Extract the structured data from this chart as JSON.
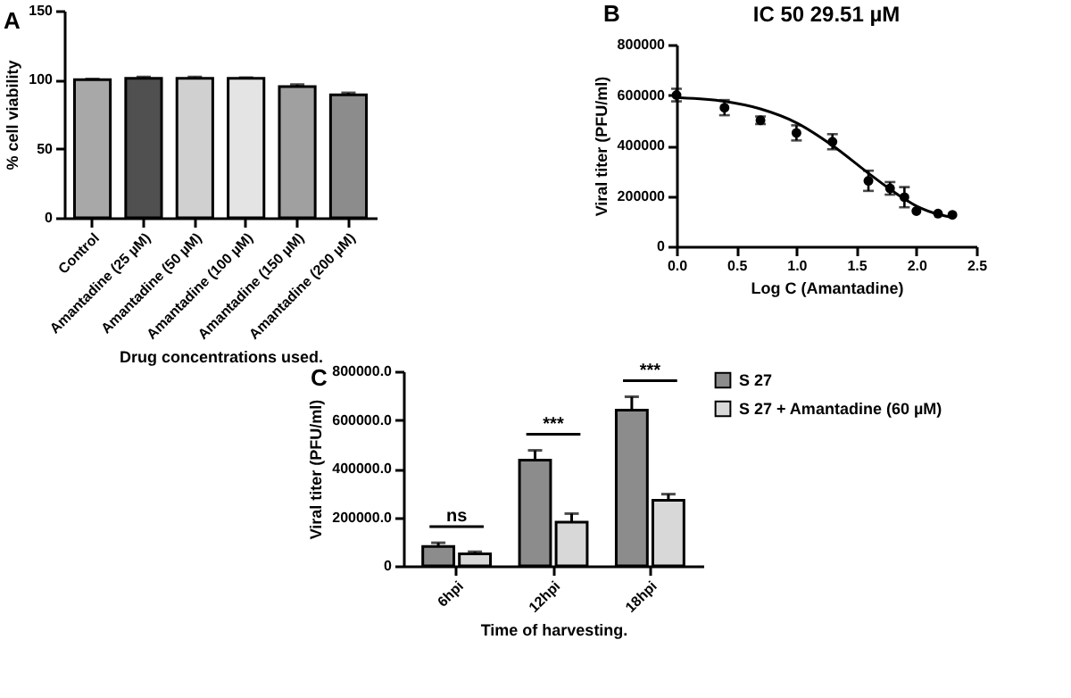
{
  "chart_data": [
    {
      "type": "bar",
      "annotations": [
        "A"
      ],
      "ylabel": "% cell viability",
      "xlabel": "Drug concentrations used.",
      "categories": [
        "Control",
        "Amantadine (25 µM)",
        "Amantadine (50 µM)",
        "Amantadine (100 µM)",
        "Amantadine (150 µM)",
        "Amantadine (200 µM)"
      ],
      "values": [
        100,
        101,
        101,
        101,
        95,
        89
      ],
      "errors": [
        0.5,
        1,
        1,
        0.5,
        1.5,
        1.5
      ],
      "colors": [
        "#a8a8a8",
        "#505050",
        "#d0d0d0",
        "#e4e4e4",
        "#a0a0a0",
        "#8c8c8c"
      ],
      "ylim": [
        0,
        150
      ],
      "yticks": [
        0,
        50,
        100,
        150
      ]
    },
    {
      "type": "scatter",
      "title": "IC 50 29.51 µM",
      "annotations": [
        "B"
      ],
      "xlabel": "Log C (Amantadine)",
      "ylabel": "Viral titer (PFU/ml)",
      "series": [
        {
          "type": "scatter",
          "marker": "circle",
          "color": "#000000",
          "x": [
            0,
            0.4,
            0.7,
            1.0,
            1.3,
            1.6,
            1.78,
            1.9,
            2.0,
            2.18,
            2.3
          ],
          "values": [
            600000,
            550000,
            500000,
            450000,
            415000,
            260000,
            230000,
            195000,
            140000,
            130000,
            125000
          ],
          "errors": [
            25000,
            30000,
            15000,
            30000,
            30000,
            40000,
            25000,
            40000,
            null,
            null,
            null
          ]
        },
        {
          "type": "line",
          "color": "#000000",
          "x": [
            0,
            0.4,
            0.7,
            1.0,
            1.3,
            1.6,
            1.8,
            2.0,
            2.2,
            2.3
          ],
          "values": [
            590000,
            575000,
            545000,
            490000,
            400000,
            290000,
            220000,
            160000,
            125000,
            115000
          ]
        }
      ],
      "xlim": [
        0,
        2.5
      ],
      "xticks": [
        {
          "value": 0,
          "label": "0.0"
        },
        0.5,
        {
          "value": 1,
          "label": "1.0"
        },
        1.5,
        {
          "value": 2,
          "label": "2.0"
        },
        2.5
      ],
      "ylim": [
        0,
        800000
      ],
      "yticks": [
        0,
        200000,
        400000,
        600000,
        800000
      ]
    },
    {
      "type": "bar",
      "annotations": [
        "C",
        "ns",
        "***",
        "***"
      ],
      "xlabel": "Time of harvesting.",
      "ylabel": "Viral titer (PFU/ml)",
      "legend": "top right",
      "categories": [
        "6hpi",
        "12hpi",
        "18hpi"
      ],
      "series": [
        {
          "name": "S 27",
          "color": "#8c8c8c",
          "values": [
            80000,
            435000,
            640000
          ],
          "errors": [
            15000,
            40000,
            55000
          ]
        },
        {
          "name": "S 27 + Amantadine (60 µM)",
          "color": "#d8d8d8",
          "values": [
            50000,
            180000,
            270000
          ],
          "errors": [
            8000,
            35000,
            25000
          ]
        }
      ],
      "ylim": [
        0,
        800000
      ],
      "yticks": [
        0,
        {
          "value": 200000,
          "label": "200000.0"
        },
        {
          "value": 400000,
          "label": "400000.0"
        },
        {
          "value": 600000,
          "label": "600000.0"
        },
        {
          "value": 800000,
          "label": "800000.0"
        }
      ]
    }
  ]
}
